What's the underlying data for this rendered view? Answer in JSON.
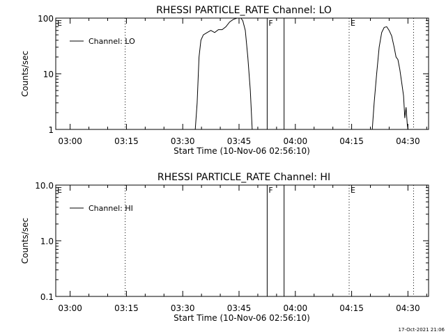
{
  "footer_timestamp": "17-Oct-2021 21:06",
  "chart_data": [
    {
      "type": "line",
      "title": "RHESSI PARTICLE_RATE Channel: LO",
      "xlabel": "Start Time (10-Nov-06 02:56:10)",
      "ylabel": "Counts/sec",
      "yscale": "log",
      "ylim": [
        1,
        100
      ],
      "xlim": [
        "02:56:10",
        "04:35:30"
      ],
      "x_ticks": [
        "03:00",
        "03:15",
        "03:30",
        "03:45",
        "04:00",
        "04:15",
        "04:30"
      ],
      "y_ticks": [
        "1",
        "10",
        "100"
      ],
      "legend": {
        "label": "Channel: LO",
        "position": "top-left"
      },
      "markers": [
        {
          "time": "03:14:40",
          "style": "dotted",
          "label": ""
        },
        {
          "time": "04:14:20",
          "style": "dotted",
          "label": "E"
        },
        {
          "time": "04:31:30",
          "style": "dotted",
          "label": ""
        },
        {
          "time": "03:52:30",
          "style": "solid",
          "label": "F"
        },
        {
          "time": "03:57:00",
          "style": "solid",
          "label": ""
        },
        {
          "time": "02:56:10",
          "style": "none",
          "label": "E"
        }
      ],
      "series": [
        {
          "name": "Channel: LO",
          "points": [
            [
              "03:33:20",
              1
            ],
            [
              "03:33:50",
              3
            ],
            [
              "03:34:20",
              20
            ],
            [
              "03:34:50",
              40
            ],
            [
              "03:35:30",
              50
            ],
            [
              "03:36:30",
              55
            ],
            [
              "03:37:30",
              60
            ],
            [
              "03:38:30",
              55
            ],
            [
              "03:39:30",
              62
            ],
            [
              "03:40:30",
              62
            ],
            [
              "03:41:30",
              70
            ],
            [
              "03:42:30",
              85
            ],
            [
              "03:43:30",
              95
            ],
            [
              "03:44:30",
              100
            ],
            [
              "03:45:30",
              100
            ],
            [
              "03:46:00",
              90
            ],
            [
              "03:46:40",
              60
            ],
            [
              "03:47:20",
              20
            ],
            [
              "03:48:00",
              5
            ],
            [
              "03:48:30",
              1
            ]
          ]
        },
        {
          "name": "Channel: LO",
          "points": [
            [
              "04:20:30",
              1
            ],
            [
              "04:21:00",
              3
            ],
            [
              "04:21:40",
              10
            ],
            [
              "04:22:20",
              30
            ],
            [
              "04:23:00",
              55
            ],
            [
              "04:23:40",
              68
            ],
            [
              "04:24:20",
              70
            ],
            [
              "04:25:00",
              60
            ],
            [
              "04:25:40",
              48
            ],
            [
              "04:26:20",
              30
            ],
            [
              "04:26:50",
              20
            ],
            [
              "04:27:20",
              18
            ],
            [
              "04:27:50",
              12
            ],
            [
              "04:28:20",
              7
            ],
            [
              "04:28:50",
              4
            ],
            [
              "04:29:10",
              1.6
            ],
            [
              "04:29:30",
              2.5
            ],
            [
              "04:29:50",
              1.2
            ],
            [
              "04:30:00",
              1
            ]
          ]
        }
      ]
    },
    {
      "type": "line",
      "title": "RHESSI PARTICLE_RATE Channel: HI",
      "xlabel": "Start Time (10-Nov-06 02:56:10)",
      "ylabel": "Counts/sec",
      "yscale": "log",
      "ylim": [
        0.1,
        10.0
      ],
      "xlim": [
        "02:56:10",
        "04:35:30"
      ],
      "x_ticks": [
        "03:00",
        "03:15",
        "03:30",
        "03:45",
        "04:00",
        "04:15",
        "04:30"
      ],
      "y_ticks": [
        "0.1",
        "1.0",
        "10.0"
      ],
      "legend": {
        "label": "Channel: HI",
        "position": "top-left"
      },
      "markers": [
        {
          "time": "03:14:40",
          "style": "dotted",
          "label": ""
        },
        {
          "time": "04:14:20",
          "style": "dotted",
          "label": "E"
        },
        {
          "time": "04:31:30",
          "style": "dotted",
          "label": ""
        },
        {
          "time": "03:52:30",
          "style": "solid",
          "label": "F"
        },
        {
          "time": "03:57:00",
          "style": "solid",
          "label": ""
        },
        {
          "time": "02:56:10",
          "style": "none",
          "label": "E"
        }
      ],
      "series": []
    }
  ]
}
